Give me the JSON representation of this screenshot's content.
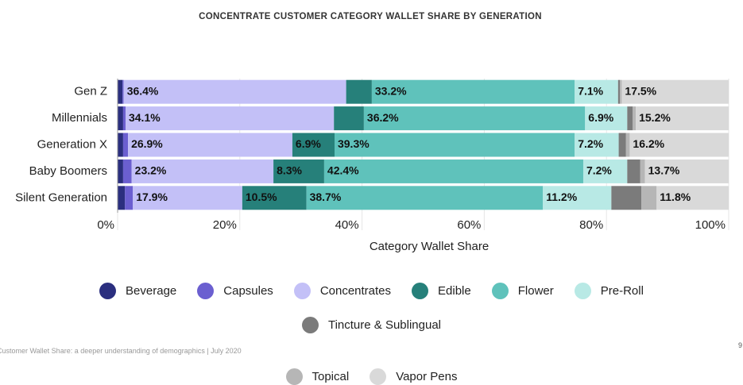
{
  "chart_data": {
    "type": "stacked-bar-horizontal",
    "title": "CONCENTRATE CUSTOMER CATEGORY WALLET SHARE BY GENERATION",
    "x_axis_label": "Category Wallet Share",
    "categories": [
      "Gen Z",
      "Millennials",
      "Generation X",
      "Baby Boomers",
      "Silent Generation"
    ],
    "xlim": [
      0,
      100
    ],
    "xticks": [
      {
        "value": 0,
        "label": "0%"
      },
      {
        "value": 20,
        "label": "20%"
      },
      {
        "value": 40,
        "label": "40%"
      },
      {
        "value": 60,
        "label": "60%"
      },
      {
        "value": 80,
        "label": "80%"
      },
      {
        "value": 100,
        "label": "100%"
      }
    ],
    "grid": true,
    "legend": "bottom",
    "series": [
      {
        "name": "Beverage",
        "color": "#2b2f7f",
        "values": [
          0.8,
          0.9,
          0.9,
          0.9,
          1.2
        ]
      },
      {
        "name": "Capsules",
        "color": "#6b5fd0",
        "values": [
          0.2,
          0.4,
          0.8,
          1.4,
          1.3
        ]
      },
      {
        "name": "Concentrates",
        "color": "#c3c0f7",
        "values": [
          36.4,
          34.1,
          26.9,
          23.2,
          17.9
        ],
        "value_labels": [
          "36.4%",
          "34.1%",
          "26.9%",
          "23.2%",
          "17.9%"
        ]
      },
      {
        "name": "Edible",
        "color": "#26807a",
        "values": [
          4.2,
          4.9,
          6.9,
          8.3,
          10.5
        ],
        "value_labels": [
          null,
          null,
          "6.9%",
          "8.3%",
          "10.5%"
        ]
      },
      {
        "name": "Flower",
        "color": "#5fc2bb",
        "values": [
          33.2,
          36.2,
          39.3,
          42.4,
          38.7
        ],
        "value_labels": [
          "33.2%",
          "36.2%",
          "39.3%",
          "42.4%",
          "38.7%"
        ]
      },
      {
        "name": "Pre-Roll",
        "color": "#b8e9e5",
        "values": [
          7.1,
          6.9,
          7.2,
          7.2,
          11.2
        ],
        "value_labels": [
          "7.1%",
          "6.9%",
          "7.2%",
          "7.2%",
          "11.2%"
        ]
      },
      {
        "name": "Tincture & Sublingual",
        "color": "#7b7b7b",
        "values": [
          0.3,
          0.9,
          1.2,
          2.1,
          4.9
        ]
      },
      {
        "name": "Topical",
        "color": "#b6b6b6",
        "values": [
          0.3,
          0.5,
          0.6,
          0.8,
          2.5
        ]
      },
      {
        "name": "Vapor Pens",
        "color": "#d9d9d9",
        "values": [
          17.5,
          15.2,
          16.2,
          13.7,
          11.8
        ],
        "value_labels": [
          "17.5%",
          "15.2%",
          "16.2%",
          "13.7%",
          "11.8%"
        ]
      }
    ]
  },
  "footer": "Customer Wallet Share: a deeper understanding of demographics | July 2020",
  "page_number": "9"
}
